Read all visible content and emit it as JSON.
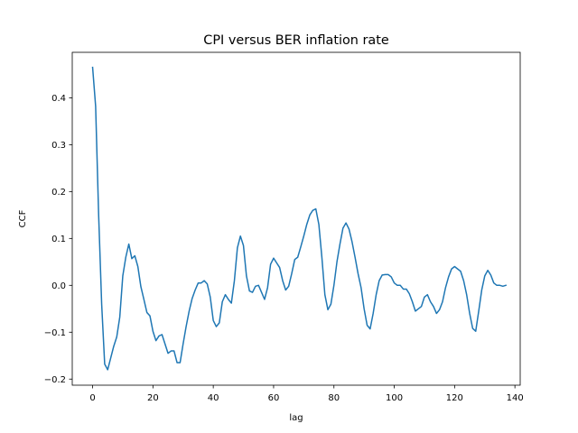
{
  "chart_data": {
    "type": "line",
    "title": "CPI versus BER inflation rate",
    "xlabel": "lag",
    "ylabel": "CCF",
    "xlim": [
      -6.75,
      141.75
    ],
    "ylim": [
      -0.213,
      0.497
    ],
    "x_ticks": [
      0,
      20,
      40,
      60,
      80,
      100,
      120,
      140
    ],
    "y_ticks": [
      -0.2,
      -0.1,
      0.0,
      0.1,
      0.2,
      0.3,
      0.4
    ],
    "y_tick_labels": [
      "−0.2",
      "−0.1",
      "0.0",
      "0.1",
      "0.2",
      "0.3",
      "0.4"
    ],
    "grid": false,
    "line_color": "#1f77b4",
    "series": [
      {
        "x_start": 0,
        "x_step": 1,
        "values": [
          0.465,
          0.382,
          0.15,
          -0.04,
          -0.168,
          -0.18,
          -0.155,
          -0.13,
          -0.11,
          -0.068,
          0.02,
          0.06,
          0.088,
          0.057,
          0.063,
          0.04,
          -0.003,
          -0.03,
          -0.058,
          -0.065,
          -0.098,
          -0.118,
          -0.108,
          -0.105,
          -0.125,
          -0.145,
          -0.14,
          -0.14,
          -0.165,
          -0.165,
          -0.125,
          -0.088,
          -0.055,
          -0.028,
          -0.01,
          0.005,
          0.005,
          0.01,
          0.003,
          -0.025,
          -0.075,
          -0.088,
          -0.08,
          -0.035,
          -0.02,
          -0.03,
          -0.038,
          0.01,
          0.08,
          0.105,
          0.085,
          0.02,
          -0.012,
          -0.015,
          -0.002,
          0.0,
          -0.015,
          -0.03,
          -0.005,
          0.045,
          0.058,
          0.048,
          0.038,
          0.01,
          -0.01,
          -0.002,
          0.025,
          0.055,
          0.06,
          0.082,
          0.105,
          0.13,
          0.15,
          0.16,
          0.163,
          0.13,
          0.06,
          -0.02,
          -0.052,
          -0.04,
          0.0,
          0.05,
          0.088,
          0.122,
          0.133,
          0.12,
          0.093,
          0.06,
          0.025,
          -0.005,
          -0.05,
          -0.085,
          -0.093,
          -0.06,
          -0.02,
          0.01,
          0.022,
          0.023,
          0.023,
          0.018,
          0.005,
          0.0,
          0.0,
          -0.008,
          -0.008,
          -0.018,
          -0.035,
          -0.055,
          -0.05,
          -0.045,
          -0.025,
          -0.02,
          -0.035,
          -0.045,
          -0.06,
          -0.052,
          -0.035,
          -0.005,
          0.018,
          0.035,
          0.04,
          0.035,
          0.03,
          0.01,
          -0.02,
          -0.06,
          -0.092,
          -0.098,
          -0.055,
          -0.01,
          0.02,
          0.032,
          0.022,
          0.005,
          0.0,
          0.0,
          -0.002,
          0.0
        ]
      }
    ]
  }
}
